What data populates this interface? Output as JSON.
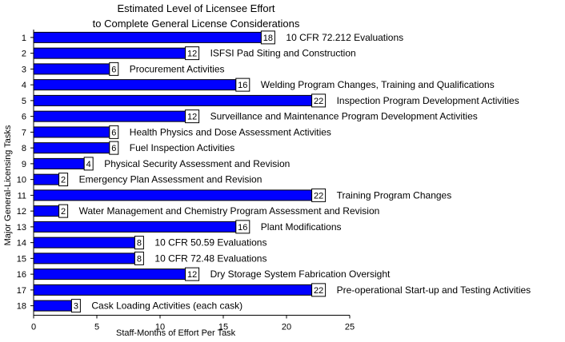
{
  "chart_data": {
    "type": "bar",
    "orientation": "horizontal",
    "title": [
      "Estimated Level of Licensee Effort",
      "to Complete General License Considerations"
    ],
    "xlabel": "Staff-Months of Effort Per Task",
    "ylabel": "Major General-Licensing Tasks",
    "xlim": [
      0,
      25
    ],
    "x_ticks": [
      "0",
      "5",
      "10",
      "15",
      "20",
      "25"
    ],
    "bar_color": "#0000ff",
    "categories": [
      "1",
      "2",
      "3",
      "4",
      "5",
      "6",
      "7",
      "8",
      "9",
      "10",
      "11",
      "12",
      "13",
      "14",
      "15",
      "16",
      "17",
      "18"
    ],
    "values": [
      18,
      12,
      6,
      16,
      22,
      12,
      6,
      6,
      4,
      2,
      22,
      2,
      16,
      8,
      8,
      12,
      22,
      3
    ],
    "task_labels": [
      "10 CFR 72.212 Evaluations",
      "ISFSI Pad Siting and Construction",
      "Procurement Activities",
      "Welding Program Changes, Training and  Qualifications",
      "Inspection Program Development Activities",
      "Surveillance and Maintenance Program Development Activities",
      "Health Physics and Dose Assessment Activities",
      "Fuel  Inspection Activities",
      "Physical Security Assessment and Revision",
      "Emergency Plan Assessment and Revision",
      "Training Program Changes",
      "Water Management and Chemistry Program Assessment and Revision",
      "Plant Modifications",
      "10 CFR 50.59 Evaluations",
      "10 CFR 72.48 Evaluations",
      "Dry Storage System Fabrication Oversight",
      "Pre-operational Start-up and Testing Activities",
      "Cask Loading Activities (each cask)"
    ],
    "legend": "none",
    "grid": false
  }
}
